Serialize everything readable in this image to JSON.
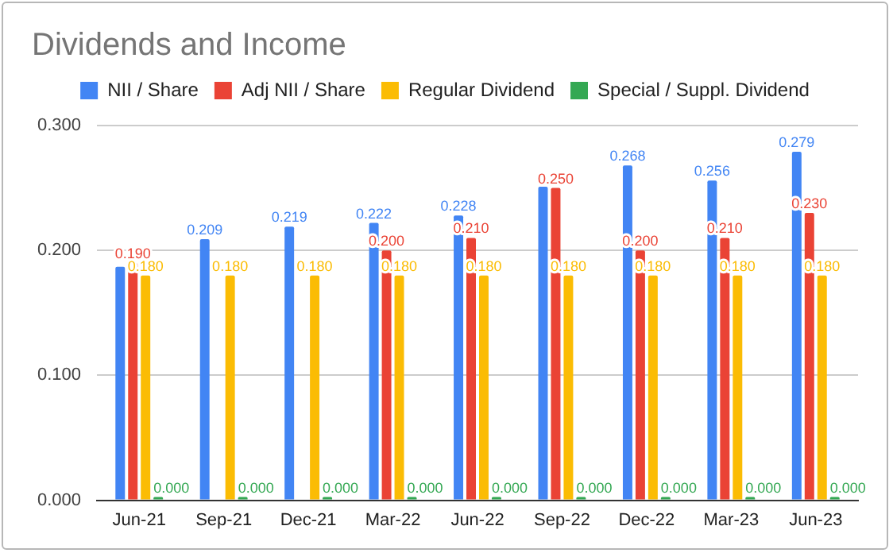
{
  "chart_data": {
    "type": "bar",
    "title": "Dividends and Income",
    "categories": [
      "Jun-21",
      "Sep-21",
      "Dec-21",
      "Mar-22",
      "Jun-22",
      "Sep-22",
      "Dec-22",
      "Mar-23",
      "Jun-23"
    ],
    "series": [
      {
        "name": "NII / Share",
        "color": "#4285f4",
        "values": [
          0.187,
          0.209,
          0.219,
          0.222,
          0.228,
          0.251,
          0.268,
          0.256,
          0.279
        ],
        "value_labels": [
          null,
          "0.209",
          "0.219",
          "0.222",
          "0.228",
          null,
          "0.268",
          "0.256",
          "0.279"
        ]
      },
      {
        "name": "Adj NII / Share",
        "color": "#ea4335",
        "values": [
          0.19,
          null,
          null,
          0.2,
          0.21,
          0.25,
          0.2,
          0.21,
          0.23
        ],
        "value_labels": [
          "0.190",
          null,
          null,
          "0.200",
          "0.210",
          "0.250",
          "0.200",
          "0.210",
          "0.230"
        ]
      },
      {
        "name": "Regular Dividend",
        "color": "#fbbc04",
        "values": [
          0.18,
          0.18,
          0.18,
          0.18,
          0.18,
          0.18,
          0.18,
          0.18,
          0.18
        ],
        "value_labels": [
          "0.180",
          "0.180",
          "0.180",
          "0.180",
          "0.180",
          "0.180",
          "0.180",
          "0.180",
          "0.180"
        ]
      },
      {
        "name": "Special / Suppl. Dividend",
        "color": "#34a853",
        "values": [
          0,
          0,
          0,
          0,
          0,
          0,
          0,
          0,
          0
        ],
        "value_labels": [
          "0.000",
          "0.000",
          "0.000",
          "0.000",
          "0.000",
          "0.000",
          "0.000",
          "0.000",
          "0.000"
        ]
      }
    ],
    "ylim": [
      0,
      0.3
    ],
    "yticks": [
      {
        "value": 0,
        "label": "0.000"
      },
      {
        "value": 0.1,
        "label": "0.100"
      },
      {
        "value": 0.2,
        "label": "0.200"
      },
      {
        "value": 0.3,
        "label": "0.300"
      }
    ],
    "grid": "y",
    "legend": "top"
  }
}
